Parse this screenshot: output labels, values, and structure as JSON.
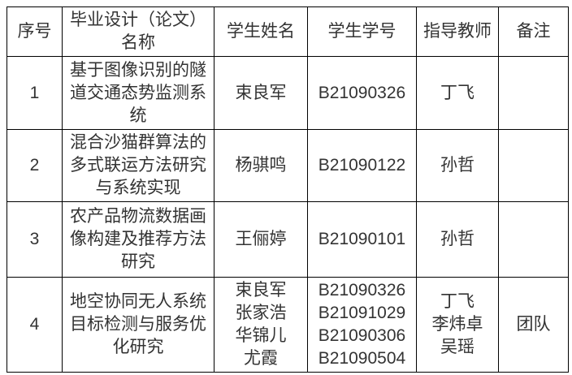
{
  "page": {
    "background_color": "#ffffff",
    "text_color": "#333333",
    "border_color": "#000000"
  },
  "table": {
    "headers": {
      "serial": "序号",
      "title": [
        "毕业设计（论文）",
        "名称"
      ],
      "student_name": "学生姓名",
      "student_id": "学生学号",
      "advisor": "指导教师",
      "remark": "备注"
    },
    "rows": [
      {
        "no": "1",
        "title": [
          "基于图像识别的隧",
          "道交通态势监测系",
          "统"
        ],
        "students": [
          "束良军"
        ],
        "student_ids": [
          "B21090326"
        ],
        "advisors": [
          "丁飞"
        ],
        "remark": ""
      },
      {
        "no": "2",
        "title": [
          "混合沙猫群算法的",
          "多式联运方法研究",
          "与系统实现"
        ],
        "students": [
          "杨骐鸣"
        ],
        "student_ids": [
          "B21090122"
        ],
        "advisors": [
          "孙哲"
        ],
        "remark": ""
      },
      {
        "no": "3",
        "title": [
          "农产品物流数据画",
          "像构建及推荐方法",
          "研究"
        ],
        "students": [
          "王俪婷"
        ],
        "student_ids": [
          "B21090101"
        ],
        "advisors": [
          "孙哲"
        ],
        "remark": ""
      },
      {
        "no": "4",
        "title": [
          "地空协同无人系统",
          "目标检测与服务优",
          "化研究"
        ],
        "students": [
          "束良军",
          "张家浩",
          "华锦儿",
          "尤霞"
        ],
        "student_ids": [
          "B21090326",
          "B21091029",
          "B21090306",
          "B21090504"
        ],
        "advisors": [
          "丁飞",
          "李炜卓",
          "吴瑶"
        ],
        "remark": "团队"
      }
    ]
  }
}
